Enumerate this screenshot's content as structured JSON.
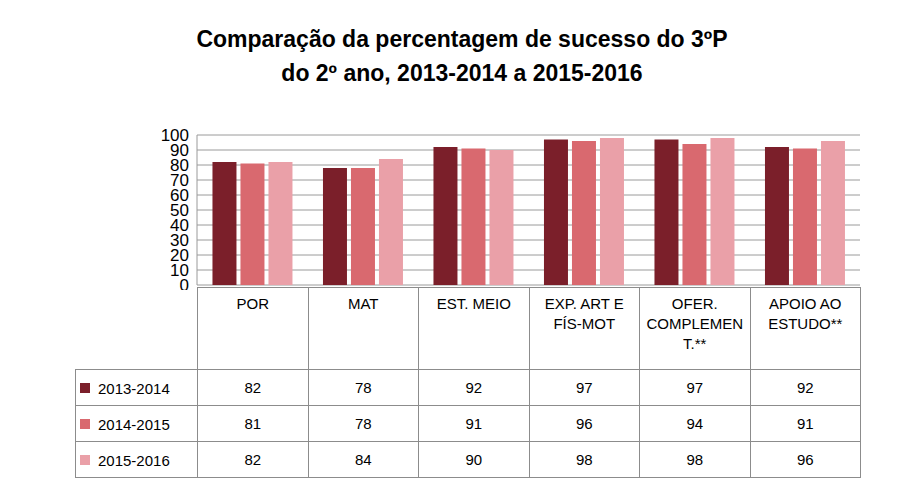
{
  "chart_data": {
    "type": "bar",
    "title": "Comparação da percentagem de sucesso do 3ºP do 2º ano, 2013-2014 a 2015-2016",
    "categories": [
      "POR",
      "MAT",
      "EST. MEIO",
      "EXP. ART E FÍS-MOT",
      "OFER. COMPLEMENT.**",
      "APOIO AO ESTUDO**"
    ],
    "series": [
      {
        "name": "2013-2014",
        "color": "#7b1f2a",
        "values": [
          82,
          78,
          92,
          97,
          97,
          92
        ]
      },
      {
        "name": "2014-2015",
        "color": "#d9696f",
        "values": [
          81,
          78,
          91,
          96,
          94,
          91
        ]
      },
      {
        "name": "2015-2016",
        "color": "#eaa0a8",
        "values": [
          82,
          84,
          90,
          98,
          98,
          96
        ]
      }
    ],
    "ylim": [
      0,
      100
    ],
    "yticks": [
      0,
      10,
      20,
      30,
      40,
      50,
      60,
      70,
      80,
      90,
      100
    ],
    "grid": true
  }
}
